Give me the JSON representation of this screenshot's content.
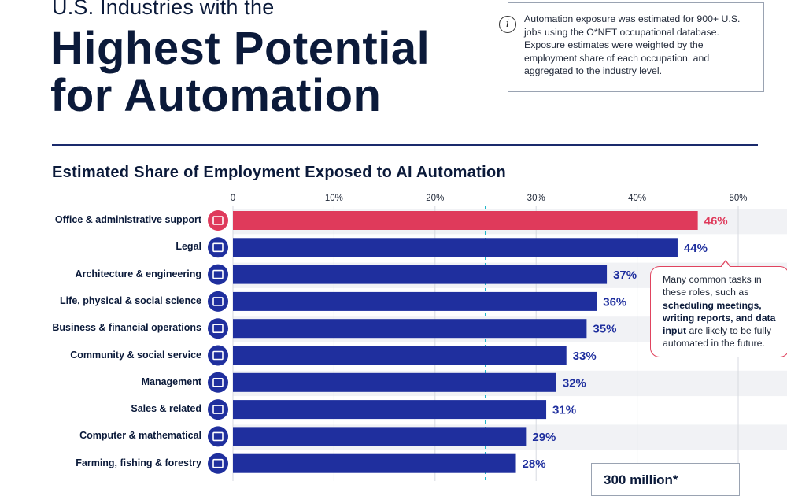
{
  "header": {
    "subtitle": "U.S. Industries with the",
    "headline_line1": "Highest Potential",
    "headline_line2": "for Automation"
  },
  "note": {
    "icon": "info-icon",
    "text": "Automation exposure was estimated for 900+ U.S. jobs using the O*NET occupational database. Exposure estimates were weighted by the employment share of each occupation, and aggregated to the industry level."
  },
  "chart_data": {
    "type": "bar",
    "orientation": "horizontal",
    "title": "Estimated Share of Employment Exposed to AI Automation",
    "xlim": [
      0,
      50
    ],
    "x_ticks": [
      "0",
      "10%",
      "20%",
      "30%",
      "40%",
      "50%"
    ],
    "categories": [
      "Office & administrative support",
      "Legal",
      "Architecture & engineering",
      "Life, physical & social science",
      "Business & financial operations",
      "Community & social service",
      "Management",
      "Sales & related",
      "Computer & mathematical",
      "Farming, fishing & forestry"
    ],
    "values": [
      46,
      44,
      37,
      36,
      35,
      33,
      32,
      31,
      29,
      28
    ],
    "value_labels": [
      "46%",
      "44%",
      "37%",
      "36%",
      "35%",
      "33%",
      "32%",
      "31%",
      "29%",
      "28%"
    ],
    "icons": [
      "office-supplies-icon",
      "gavel-icon",
      "blueprint-icon",
      "molecule-icon",
      "handshake-icon",
      "community-person-icon",
      "document-icon",
      "sales-chart-icon",
      "computer-globe-icon",
      "trees-icon"
    ],
    "highlight_index": 0,
    "colors": {
      "highlight": "#df3a5b",
      "bar": "#1f2f9e",
      "label": "#1f2f9e",
      "reference_line": "#1fb6c9"
    },
    "reference_line_value": 25,
    "grid": true
  },
  "callout": {
    "text_plain_1": "Many common tasks in these roles, such as ",
    "text_bold": "scheduling meetings, writing reports, and data input",
    "text_plain_2": " are likely to be fully automated in the future."
  },
  "bottom_box": {
    "text": "300 million*"
  }
}
